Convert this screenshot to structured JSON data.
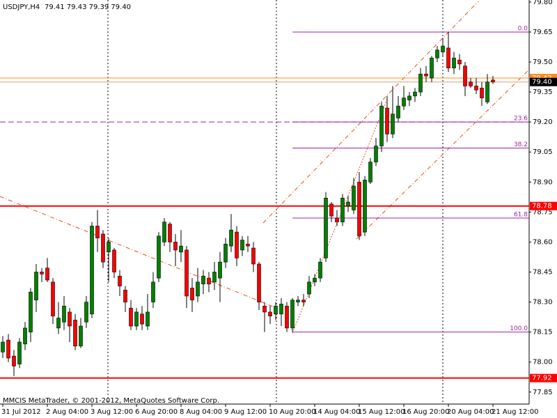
{
  "chart_data": {
    "type": "candlestick",
    "symbol": "USDJPY,H4",
    "info": "79.41 79.43 79.39 79.40",
    "footer": "MMCIS MetaTrader, © 2001-2012, MetaQuotes Software Corp.",
    "up_color": "#008000",
    "down_color": "#ff0000",
    "x": [
      "31 Jul 2012",
      null,
      null,
      null,
      null,
      null,
      null,
      null,
      "2 Aug 04:00",
      null,
      null,
      null,
      null,
      null,
      null,
      null,
      "3 Aug 12:00",
      null,
      null,
      null,
      null,
      null,
      null,
      null,
      "6 Aug 20:00",
      null,
      null,
      null,
      null,
      null,
      null,
      null,
      "8 Aug 04:00",
      null,
      null,
      null,
      null,
      null,
      null,
      null,
      "9 Aug 12:00",
      null,
      null,
      null,
      null,
      null,
      null,
      null,
      "10 Aug 20:00",
      null,
      null,
      null,
      null,
      null,
      null,
      null,
      "14 Aug 04:00",
      null,
      null,
      null,
      null,
      null,
      null,
      null,
      "15 Aug 12:00",
      null,
      null,
      null,
      null,
      null,
      null,
      null,
      "16 Aug 20:00",
      null,
      null,
      null,
      null,
      null,
      null,
      null,
      "20 Aug 04:00",
      null,
      null,
      null,
      null,
      null,
      null,
      null,
      "21 Aug 12:00"
    ],
    "open": [
      78.05,
      78.11,
      78.03,
      77.99,
      78.09,
      78.15,
      78.31,
      78.45,
      78.47,
      78.4,
      78.17,
      78.2,
      78.25,
      78.21,
      78.08,
      78.2,
      78.24,
      78.68,
      78.64,
      78.55,
      78.56,
      78.43,
      78.36,
      78.27,
      78.18,
      78.24,
      78.18,
      78.3,
      78.42,
      78.6,
      78.69,
      78.6,
      78.55,
      78.56,
      78.37,
      78.33,
      78.39,
      78.42,
      78.4,
      78.42,
      78.5,
      78.58,
      78.65,
      78.56,
      78.59,
      78.57,
      78.49,
      78.28,
      78.25,
      78.24,
      78.24,
      78.28,
      78.17,
      78.3,
      78.31,
      78.34,
      78.4,
      78.42,
      78.52,
      78.79,
      78.72,
      78.7,
      78.78,
      78.76,
      78.9,
      78.65,
      78.9,
      79.0,
      79.08,
      79.27,
      79.14,
      79.22,
      79.28,
      79.31,
      79.33,
      79.35,
      79.44,
      79.42,
      79.52,
      79.55,
      79.57,
      79.47,
      79.51,
      79.48,
      79.4,
      79.38,
      79.37,
      79.3,
      79.41
    ],
    "high": [
      78.13,
      78.14,
      78.06,
      78.12,
      78.2,
      78.37,
      78.49,
      78.47,
      78.52,
      78.42,
      78.3,
      78.33,
      78.27,
      78.24,
      78.22,
      78.33,
      78.7,
      78.76,
      78.66,
      78.62,
      78.57,
      78.46,
      78.38,
      78.31,
      78.27,
      78.28,
      78.34,
      78.45,
      78.65,
      78.72,
      78.7,
      78.64,
      78.66,
      78.58,
      78.42,
      78.47,
      78.46,
      78.45,
      78.5,
      78.55,
      78.62,
      78.74,
      78.68,
      78.63,
      78.63,
      78.6,
      78.5,
      78.3,
      78.28,
      78.3,
      78.32,
      78.3,
      78.32,
      78.33,
      78.34,
      78.43,
      78.44,
      78.52,
      78.85,
      78.8,
      78.76,
      78.84,
      78.83,
      78.92,
      78.95,
      78.93,
      79.02,
      79.12,
      79.3,
      79.33,
      79.38,
      79.33,
      79.38,
      79.35,
      79.37,
      79.47,
      79.48,
      79.53,
      79.58,
      79.62,
      79.65,
      79.55,
      79.54,
      79.5,
      79.42,
      79.42,
      79.4,
      79.44,
      79.43
    ],
    "low": [
      78.02,
      78.0,
      77.93,
      77.97,
      78.06,
      78.1,
      78.25,
      78.4,
      78.4,
      78.19,
      78.14,
      78.16,
      78.1,
      78.06,
      78.07,
      78.17,
      78.22,
      78.55,
      78.47,
      78.4,
      78.42,
      78.33,
      78.25,
      78.16,
      78.16,
      78.16,
      78.16,
      78.27,
      78.4,
      78.58,
      78.55,
      78.48,
      78.5,
      78.27,
      78.25,
      78.3,
      78.34,
      78.35,
      78.36,
      78.3,
      78.47,
      78.55,
      78.48,
      78.53,
      78.55,
      78.45,
      78.26,
      78.15,
      78.19,
      78.21,
      78.18,
      78.15,
      78.15,
      78.28,
      78.28,
      78.32,
      78.38,
      78.4,
      78.5,
      78.7,
      78.68,
      78.68,
      78.75,
      78.74,
      78.61,
      78.63,
      78.89,
      78.98,
      79.05,
      79.1,
      79.12,
      79.2,
      79.26,
      79.28,
      79.3,
      79.33,
      79.4,
      79.4,
      79.5,
      79.53,
      79.45,
      79.44,
      79.46,
      79.33,
      79.37,
      79.34,
      79.28,
      79.29,
      79.39
    ],
    "close": [
      78.1,
      78.02,
      77.98,
      78.1,
      78.17,
      78.35,
      78.45,
      78.44,
      78.41,
      78.23,
      78.22,
      78.28,
      78.18,
      78.08,
      78.18,
      78.3,
      78.68,
      78.62,
      78.5,
      78.6,
      78.45,
      78.38,
      78.3,
      78.18,
      78.25,
      78.19,
      78.25,
      78.4,
      78.63,
      78.7,
      78.6,
      78.56,
      78.58,
      78.33,
      78.31,
      78.4,
      78.43,
      78.39,
      78.45,
      78.5,
      78.59,
      78.66,
      78.52,
      78.61,
      78.58,
      78.49,
      78.3,
      78.25,
      78.23,
      78.28,
      78.29,
      78.17,
      78.31,
      78.31,
      78.3,
      78.4,
      78.42,
      78.5,
      78.82,
      78.73,
      78.7,
      78.82,
      78.8,
      78.88,
      78.63,
      78.91,
      79.0,
      79.08,
      79.28,
      79.14,
      79.24,
      79.28,
      79.32,
      79.33,
      79.35,
      79.44,
      79.43,
      79.52,
      79.56,
      79.58,
      79.47,
      79.52,
      79.49,
      79.38,
      79.38,
      79.36,
      79.32,
      79.4,
      79.4
    ],
    "ylim": [
      77.79,
      79.81
    ],
    "yticks": [
      77.85,
      {
        "value": 78,
        "label": "78.00"
      },
      78.15,
      {
        "value": 78.3,
        "label": "78.30"
      },
      78.45,
      {
        "value": 78.6,
        "label": "78.60"
      },
      78.75,
      {
        "value": 78.9,
        "label": "78.90"
      },
      79.05,
      {
        "value": 79.2,
        "label": "79.20"
      },
      79.35,
      {
        "value": 79.5,
        "label": "79.50"
      },
      79.65,
      {
        "value": 79.8,
        "label": "79.80"
      }
    ],
    "levels": [
      {
        "value": 78.78,
        "label": "78.78",
        "color": "#ff0000"
      },
      {
        "value": 77.92,
        "label": "77.92",
        "color": "#ff0000"
      },
      {
        "value": 79.42,
        "label": "79.42",
        "color": "#ff8c1a"
      },
      {
        "value": 79.4,
        "label": "79.40",
        "color": "#000000"
      }
    ],
    "dashed_level": 79.2,
    "fibo": [
      {
        "value": 79.65,
        "label": "0.0"
      },
      {
        "value": 79.2,
        "label": "23.6"
      },
      {
        "value": 79.07,
        "label": "38.2"
      },
      {
        "value": 78.72,
        "label": "61.8"
      },
      {
        "value": 78.15,
        "label": "100.0"
      }
    ]
  }
}
